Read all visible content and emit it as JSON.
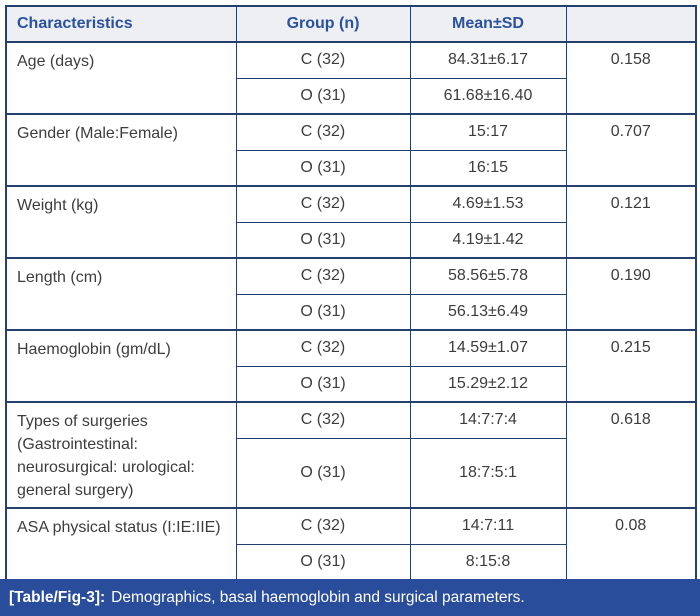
{
  "colors": {
    "border_navy": "#24406c",
    "header_bg": "#edeff3",
    "header_text_blue": "#2b51a1",
    "body_text": "#3d3d3d",
    "caption_bg": "#2a4d9b",
    "caption_text": "#ffffff"
  },
  "table": {
    "headers": {
      "characteristics": "Characteristics",
      "group": "Group (n)",
      "mean_sd": "Mean±SD",
      "p_value": ""
    },
    "groups": [
      {
        "characteristic": "Age (days)",
        "p": "0.158",
        "rows": [
          {
            "group": "C (32)",
            "value": "84.31±6.17"
          },
          {
            "group": "O (31)",
            "value": "61.68±16.40"
          }
        ]
      },
      {
        "characteristic": "Gender (Male:Female)",
        "p": "0.707",
        "rows": [
          {
            "group": "C (32)",
            "value": "15:17"
          },
          {
            "group": "O (31)",
            "value": "16:15"
          }
        ]
      },
      {
        "characteristic": "Weight (kg)",
        "p": "0.121",
        "rows": [
          {
            "group": "C (32)",
            "value": "4.69±1.53"
          },
          {
            "group": "O (31)",
            "value": "4.19±1.42"
          }
        ]
      },
      {
        "characteristic": "Length (cm)",
        "p": "0.190",
        "rows": [
          {
            "group": "C (32)",
            "value": "58.56±5.78"
          },
          {
            "group": "O (31)",
            "value": "56.13±6.49"
          }
        ]
      },
      {
        "characteristic": "Haemoglobin (gm/dL)",
        "p": "0.215",
        "rows": [
          {
            "group": "C (32)",
            "value": "14.59±1.07"
          },
          {
            "group": "O (31)",
            "value": "15.29±2.12"
          }
        ]
      },
      {
        "characteristic": "Types of surgeries (Gastrointestinal: neurosurgical: urological: general surgery)",
        "p": "0.618",
        "rows": [
          {
            "group": "C (32)",
            "value": "14:7:7:4"
          },
          {
            "group": "O (31)",
            "value": "18:7:5:1"
          }
        ]
      },
      {
        "characteristic": "ASA physical status (I:IE:IIE)",
        "p": "0.08",
        "rows": [
          {
            "group": "C (32)",
            "value": "14:7:11"
          },
          {
            "group": "O (31)",
            "value": "8:15:8"
          }
        ]
      }
    ]
  },
  "caption": {
    "label": "[Table/Fig-3]:",
    "text": "Demographics, basal haemoglobin and surgical parameters."
  }
}
